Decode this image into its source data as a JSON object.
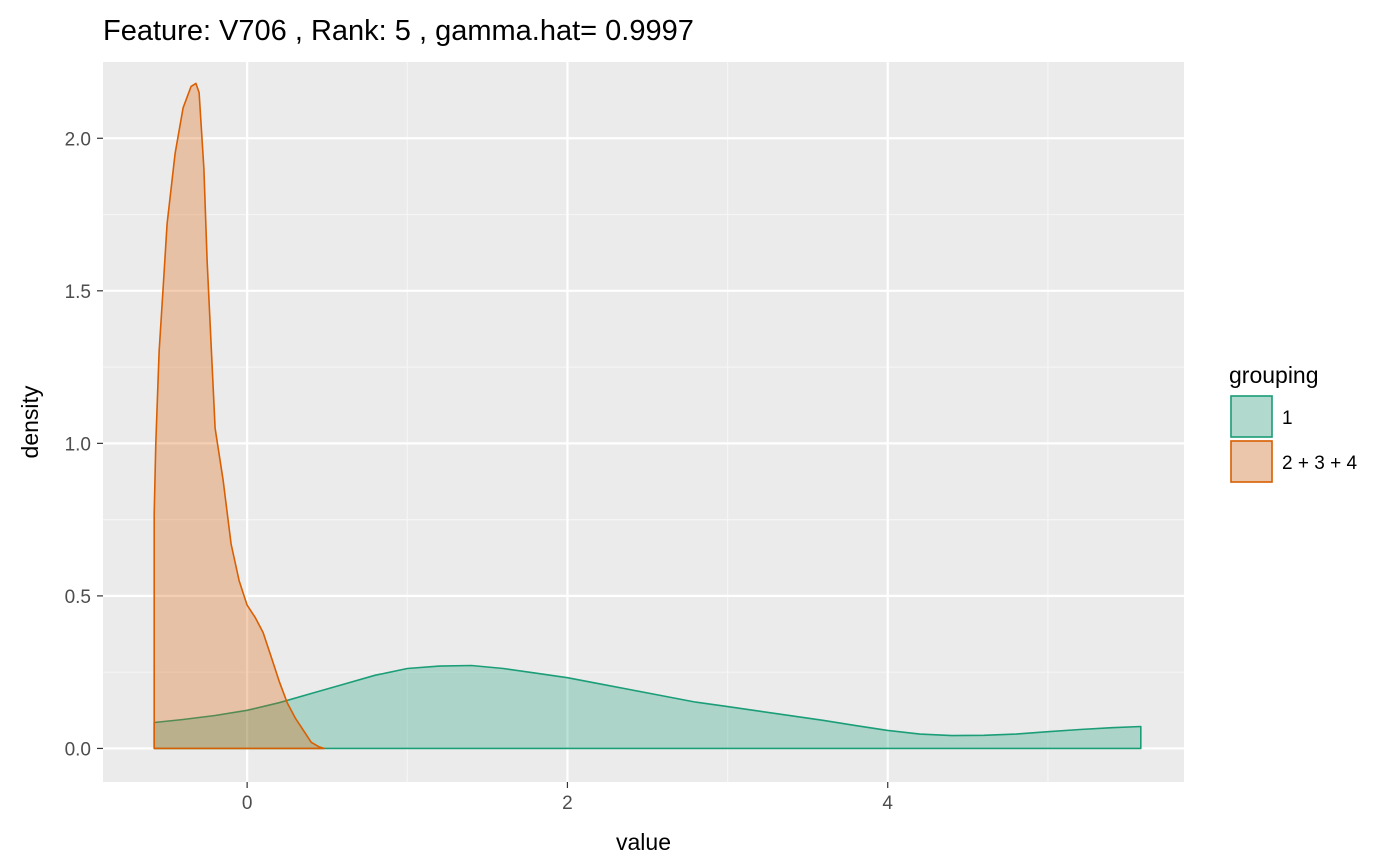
{
  "chart_data": {
    "type": "area",
    "title": "Feature: V706 , Rank: 5 , gamma.hat= 0.9997",
    "xlabel": "value",
    "ylabel": "density",
    "xlim": [
      -0.9,
      5.85
    ],
    "ylim": [
      -0.11,
      2.25
    ],
    "x_ticks": [
      0,
      2,
      4
    ],
    "x_tick_labels": [
      "0",
      "2",
      "4"
    ],
    "x_minor_ticks": [
      1,
      3,
      5
    ],
    "y_ticks": [
      0.0,
      0.5,
      1.0,
      1.5,
      2.0
    ],
    "y_tick_labels": [
      "0.0",
      "0.5",
      "1.0",
      "1.5",
      "2.0"
    ],
    "y_minor_ticks": [
      0.25,
      0.75,
      1.25,
      1.75
    ],
    "grid": true,
    "legend": {
      "title": "grouping",
      "position": "right"
    },
    "series": [
      {
        "name": "1",
        "color": "#1b9e77",
        "fill": "#1b9e77",
        "fill_opacity": 0.3,
        "x": [
          -0.58,
          -0.4,
          -0.2,
          0.0,
          0.2,
          0.4,
          0.6,
          0.8,
          1.0,
          1.2,
          1.4,
          1.6,
          1.8,
          2.0,
          2.2,
          2.4,
          2.6,
          2.8,
          3.0,
          3.2,
          3.4,
          3.6,
          3.8,
          4.0,
          4.2,
          4.4,
          4.6,
          4.8,
          5.0,
          5.2,
          5.4,
          5.58
        ],
        "y": [
          0.085,
          0.095,
          0.108,
          0.125,
          0.15,
          0.18,
          0.21,
          0.24,
          0.262,
          0.27,
          0.272,
          0.262,
          0.247,
          0.232,
          0.212,
          0.192,
          0.172,
          0.152,
          0.137,
          0.122,
          0.107,
          0.092,
          0.075,
          0.059,
          0.047,
          0.042,
          0.043,
          0.047,
          0.055,
          0.062,
          0.068,
          0.072
        ]
      },
      {
        "name": "2 + 3 + 4",
        "color": "#d95f02",
        "fill": "#d95f02",
        "fill_opacity": 0.3,
        "x": [
          -0.58,
          -0.57,
          -0.55,
          -0.52,
          -0.5,
          -0.45,
          -0.4,
          -0.35,
          -0.32,
          -0.3,
          -0.27,
          -0.25,
          -0.2,
          -0.15,
          -0.1,
          -0.05,
          0.0,
          0.05,
          0.1,
          0.15,
          0.2,
          0.25,
          0.3,
          0.35,
          0.4,
          0.45,
          0.48
        ],
        "y": [
          0.77,
          1.0,
          1.3,
          1.55,
          1.72,
          1.95,
          2.1,
          2.17,
          2.18,
          2.15,
          1.9,
          1.6,
          1.05,
          0.88,
          0.67,
          0.55,
          0.47,
          0.43,
          0.38,
          0.3,
          0.22,
          0.15,
          0.1,
          0.06,
          0.02,
          0.005,
          0.0
        ]
      }
    ]
  }
}
